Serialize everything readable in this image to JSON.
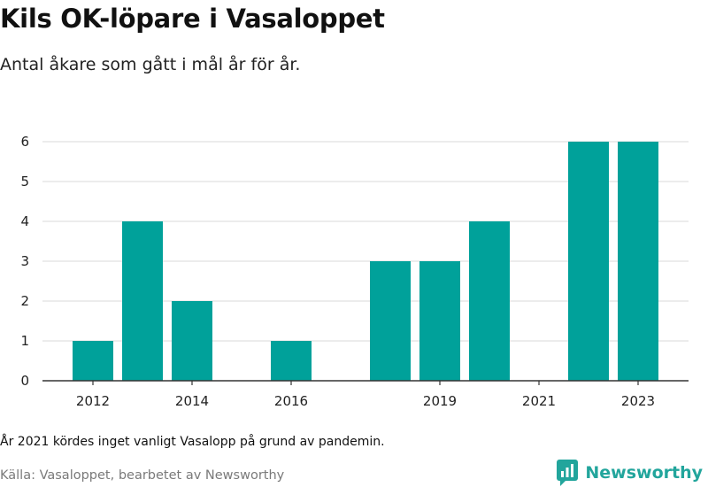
{
  "header": {
    "title": "Kils OK-löpare i Vasaloppet",
    "subtitle": "Antal åkare som gått i mål år för år."
  },
  "footer": {
    "note": "År 2021 kördes inget vanligt Vasalopp på grund av pandemin.",
    "source": "Källa: Vasaloppet, bearbetet av Newsworthy",
    "brand": "Newsworthy",
    "brand_icon": "newsworthy-logo-icon"
  },
  "colors": {
    "bar": "#00a19a",
    "grid": "#d9d9d9",
    "axis": "#333333",
    "brand": "#22a59c"
  },
  "chart_data": {
    "type": "bar",
    "title": "Kils OK-löpare i Vasaloppet",
    "subtitle": "Antal åkare som gått i mål år för år.",
    "categories": [
      "2012",
      "2013",
      "2014",
      "2015",
      "2016",
      "2017",
      "2018",
      "2019",
      "2020",
      "2021",
      "2022",
      "2023"
    ],
    "values": [
      1,
      4,
      2,
      0,
      1,
      0,
      3,
      3,
      4,
      0,
      6,
      6
    ],
    "x_tick_labels": [
      "2012",
      "2014",
      "2016",
      "2019",
      "2021",
      "2023"
    ],
    "y_ticks": [
      0,
      1,
      2,
      3,
      4,
      5,
      6
    ],
    "ylim": [
      0,
      6
    ],
    "xlabel": "",
    "ylabel": "",
    "grid": true,
    "legend": "none"
  }
}
